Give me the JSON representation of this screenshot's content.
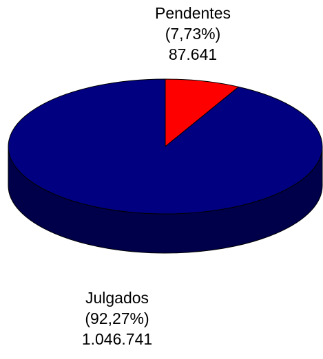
{
  "chart_data": {
    "type": "pie",
    "style": "3d",
    "slices": [
      {
        "name": "Pendentes",
        "percent_label": "(7,73%)",
        "value_label": "87.641",
        "value": 87641,
        "share": 0.0773,
        "color": "#ff0000",
        "side_color": "#800000"
      },
      {
        "name": "Julgados",
        "percent_label": "(92,27%)",
        "value_label": "1.046.741",
        "value": 1046741,
        "share": 0.9227,
        "color": "#000080",
        "side_color": "#00004a"
      }
    ]
  }
}
